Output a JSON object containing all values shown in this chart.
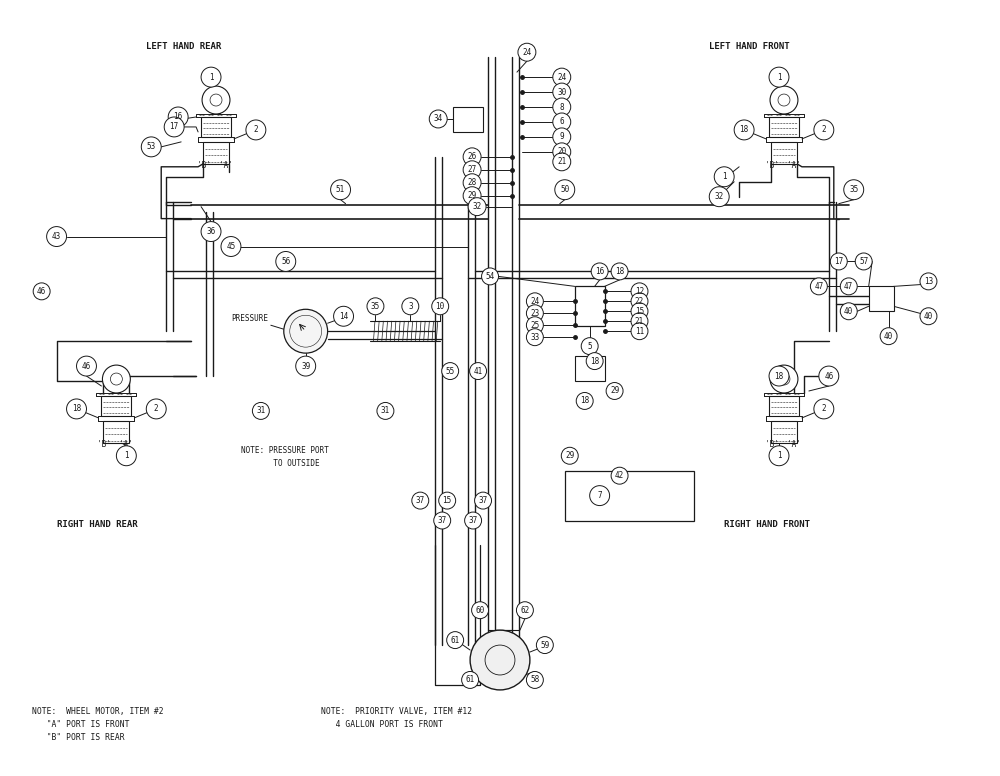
{
  "bg": "#ffffff",
  "lc": "#1a1a1a",
  "tc": "#1a1a1a",
  "fw": 10.0,
  "fh": 7.76,
  "lhr_label": "LEFT HAND REAR",
  "lhf_label": "LEFT HAND FRONT",
  "rhr_label": "RIGHT HAND REAR",
  "rhf_label": "RIGHT HAND FRONT",
  "note1": "NOTE:  WHEEL MOTOR, ITEM #2\n   \"A\" PORT IS FRONT\n   \"B\" PORT IS REAR",
  "note2": "NOTE:  PRIORITY VALVE, ITEM #12\n   4 GALLON PORT IS FRONT",
  "note3": "NOTE: PRESSURE PORT\n       TO OUTSIDE",
  "pressure_lbl": "PRESSURE"
}
